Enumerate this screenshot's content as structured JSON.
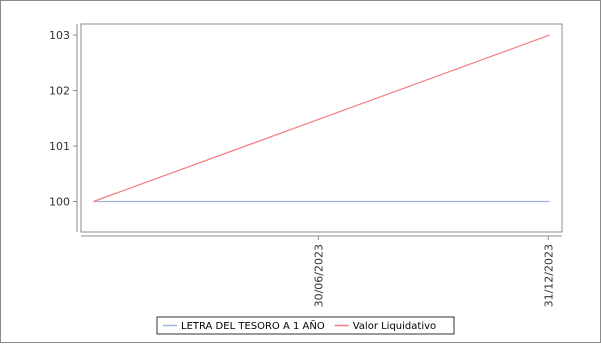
{
  "chart_data": {
    "type": "line",
    "x": [
      "2023-01-01",
      "2024-01-01"
    ],
    "series": [
      {
        "name": "LETRA DEL TESORO A 1 AÑO",
        "values": [
          100,
          100
        ],
        "color": "#9db7d8"
      },
      {
        "name": "Valor Liquidativo",
        "values": [
          100,
          103
        ],
        "color": "#f47c84"
      }
    ],
    "x_ticks": [
      "30/06/2023",
      "31/12/2023"
    ],
    "y_ticks": [
      "100",
      "101",
      "102",
      "103"
    ],
    "ylim": [
      99.45,
      103.2
    ],
    "xlim": [
      "2022-12-22",
      "2024-01-11"
    ],
    "grid": false,
    "legend_position": "bottom"
  }
}
